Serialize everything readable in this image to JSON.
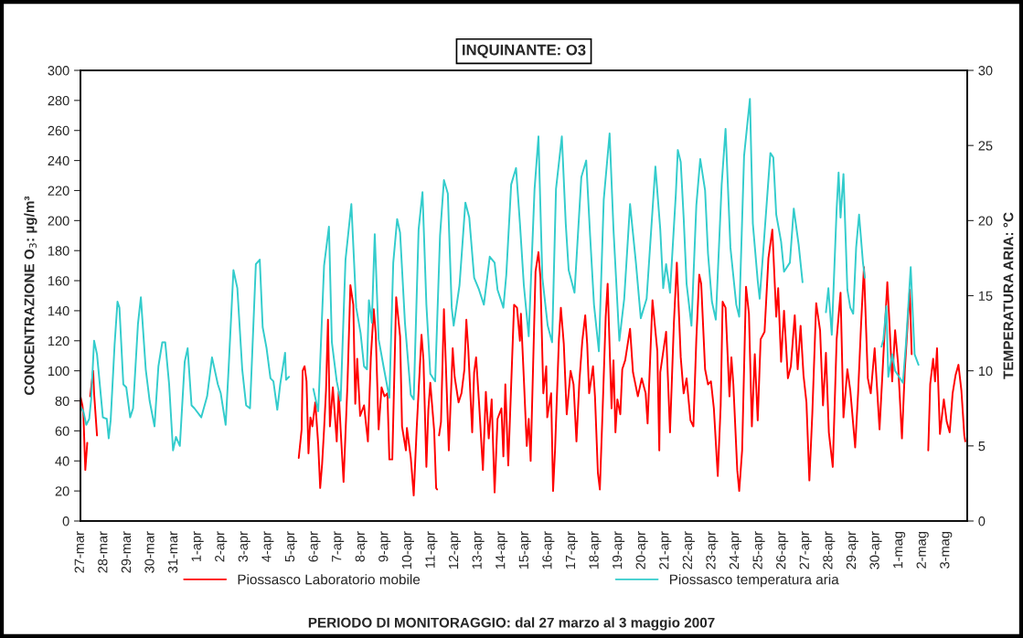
{
  "chart_data": {
    "type": "line",
    "title": "INQUINANTE: O3",
    "xlabel": "PERIODO DI MONITORAGGIO: dal 27 marzo al 3 maggio 2007",
    "ylabel": "CONCENTRAZIONE O$_{3}$: µg/m³",
    "y2label": "TEMPERATURA ARIA: °C",
    "xlim": [
      "2007-03-27",
      "2007-05-03T22:00"
    ],
    "xticks": [
      {
        "value": "2007-03-27",
        "label": "27-mar"
      },
      {
        "value": "2007-03-28",
        "label": "28-mar"
      },
      {
        "value": "2007-03-29",
        "label": "29-mar"
      },
      {
        "value": "2007-03-30",
        "label": "30-mar"
      },
      {
        "value": "2007-03-31",
        "label": "31-mar"
      },
      {
        "value": "2007-04-01",
        "label": "1-apr"
      },
      {
        "value": "2007-04-02",
        "label": "2-apr"
      },
      {
        "value": "2007-04-03",
        "label": "3-apr"
      },
      {
        "value": "2007-04-04",
        "label": "4-apr"
      },
      {
        "value": "2007-04-05",
        "label": "5-apr"
      },
      {
        "value": "2007-04-06",
        "label": "6-apr"
      },
      {
        "value": "2007-04-07",
        "label": "7-apr"
      },
      {
        "value": "2007-04-08",
        "label": "8-apr"
      },
      {
        "value": "2007-04-09",
        "label": "9-apr"
      },
      {
        "value": "2007-04-10",
        "label": "10-apr"
      },
      {
        "value": "2007-04-11",
        "label": "11-apr"
      },
      {
        "value": "2007-04-12",
        "label": "12-apr"
      },
      {
        "value": "2007-04-13",
        "label": "13-apr"
      },
      {
        "value": "2007-04-14",
        "label": "14-apr"
      },
      {
        "value": "2007-04-15",
        "label": "15-apr"
      },
      {
        "value": "2007-04-16",
        "label": "16-apr"
      },
      {
        "value": "2007-04-17",
        "label": "17-apr"
      },
      {
        "value": "2007-04-18",
        "label": "18-apr"
      },
      {
        "value": "2007-04-19",
        "label": "19-apr"
      },
      {
        "value": "2007-04-20",
        "label": "20-apr"
      },
      {
        "value": "2007-04-21",
        "label": "21-apr"
      },
      {
        "value": "2007-04-22",
        "label": "22-apr"
      },
      {
        "value": "2007-04-23",
        "label": "23-apr"
      },
      {
        "value": "2007-04-24",
        "label": "24-apr"
      },
      {
        "value": "2007-04-25",
        "label": "25-apr"
      },
      {
        "value": "2007-04-26",
        "label": "26-apr"
      },
      {
        "value": "2007-04-27",
        "label": "27-apr"
      },
      {
        "value": "2007-04-28",
        "label": "28-apr"
      },
      {
        "value": "2007-04-29",
        "label": "29-apr"
      },
      {
        "value": "2007-04-30",
        "label": "30-apr"
      },
      {
        "value": "2007-05-01",
        "label": "1-mag"
      },
      {
        "value": "2007-05-02",
        "label": "2-mag"
      },
      {
        "value": "2007-05-03",
        "label": "3-mag"
      }
    ],
    "ylim": [
      0,
      300
    ],
    "yticks": [
      0,
      20,
      40,
      60,
      80,
      100,
      120,
      140,
      160,
      180,
      200,
      220,
      240,
      260,
      280,
      300
    ],
    "y2lim": [
      0,
      30
    ],
    "y2ticks": [
      0,
      5,
      10,
      15,
      20,
      25,
      30
    ],
    "grid": false,
    "legend": "bottom",
    "marker": "none",
    "line_style": "solid",
    "series": [
      {
        "name": "Piossasco Laboratorio mobile",
        "color": "#ff0000",
        "axis": "y",
        "x": [
          "2007-03-27T00:00",
          "2007-03-27T02:00",
          "2007-03-27T03:00",
          "2007-03-27T05:00",
          "2007-03-27T07:00",
          "2007-03-27T09:00",
          "2007-03-27T10:00",
          "2007-03-27T13:00",
          "2007-03-27T14:00",
          "2007-03-27T17:00",
          "2007-04-01T00:00",
          "2007-04-05T08:00",
          "2007-04-05T11:00",
          "2007-04-05T12:00",
          "2007-04-05T14:00",
          "2007-04-05T16:00",
          "2007-04-05T18:00",
          "2007-04-05T20:00",
          "2007-04-05T22:00",
          "2007-04-06T01:00",
          "2007-04-06T04:00",
          "2007-04-06T06:00",
          "2007-04-06T08:00",
          "2007-04-06T10:00",
          "2007-04-06T12:00",
          "2007-04-06T14:00",
          "2007-04-06T16:00",
          "2007-04-06T19:00",
          "2007-04-06T23:00",
          "2007-04-07T01:00",
          "2007-04-07T03:00",
          "2007-04-07T06:00",
          "2007-04-07T10:00",
          "2007-04-07T13:00",
          "2007-04-07T16:00",
          "2007-04-07T18:00",
          "2007-04-07T20:00",
          "2007-04-07T23:00",
          "2007-04-08T03:00",
          "2007-04-08T07:00",
          "2007-04-08T10:00",
          "2007-04-08T13:00",
          "2007-04-08T15:00",
          "2007-04-08T18:00",
          "2007-04-08T21:00",
          "2007-04-09T00:00",
          "2007-04-09T03:00",
          "2007-04-09T05:00",
          "2007-04-09T08:00",
          "2007-04-09T12:00",
          "2007-04-09T16:00",
          "2007-04-09T18:00",
          "2007-04-09T22:00",
          "2007-04-09T23:00",
          "2007-04-10T03:00",
          "2007-04-10T06:00",
          "2007-04-10T09:00",
          "2007-04-10T14:00",
          "2007-04-10T16:00",
          "2007-04-10T19:00",
          "2007-04-10T21:00",
          "2007-04-10T23:00",
          "2007-04-11T03:00",
          "2007-04-11T05:00",
          "2007-04-11T06:00",
          "2007-04-11T07:00",
          "2007-04-11T08:00",
          "2007-04-11T10:00",
          "2007-04-11T13:00",
          "2007-04-11T18:00",
          "2007-04-11T22:00",
          "2007-04-12T00:00",
          "2007-04-12T04:00",
          "2007-04-12T07:00",
          "2007-04-12T10:00",
          "2007-04-12T12:00",
          "2007-04-12T14:00",
          "2007-04-12T18:00",
          "2007-04-12T20:00",
          "2007-04-12T22:00",
          "2007-04-13T01:00",
          "2007-04-13T05:00",
          "2007-04-13T08:00",
          "2007-04-13T11:00",
          "2007-04-13T14:00",
          "2007-04-13T17:00",
          "2007-04-13T20:00",
          "2007-04-14T00:00",
          "2007-04-14T02:00",
          "2007-04-14T04:00",
          "2007-04-14T07:00",
          "2007-04-14T13:00",
          "2007-04-14T16:00",
          "2007-04-14T19:00",
          "2007-04-14T20:00",
          "2007-04-14T23:00",
          "2007-04-15T02:00",
          "2007-04-15T04:00",
          "2007-04-15T06:00",
          "2007-04-15T11:00",
          "2007-04-15T14:00",
          "2007-04-15T16:00",
          "2007-04-15T19:00",
          "2007-04-15T22:00",
          "2007-04-15T23:00",
          "2007-04-16T03:00",
          "2007-04-16T05:00",
          "2007-04-16T07:00",
          "2007-04-16T11:00",
          "2007-04-16T13:00",
          "2007-04-16T16:00",
          "2007-04-16T19:00",
          "2007-04-16T23:00",
          "2007-04-17T02:00",
          "2007-04-17T05:00",
          "2007-04-17T08:00",
          "2007-04-17T11:00",
          "2007-04-17T14:00",
          "2007-04-17T16:00",
          "2007-04-17T18:00",
          "2007-04-17T22:00",
          "2007-04-18T00:00",
          "2007-04-18T03:00",
          "2007-04-18T05:00",
          "2007-04-18T08:00",
          "2007-04-18T11:00",
          "2007-04-18T13:00",
          "2007-04-18T17:00",
          "2007-04-18T19:00",
          "2007-04-18T21:00",
          "2007-04-18T23:00",
          "2007-04-19T02:00",
          "2007-04-19T04:00",
          "2007-04-19T07:00",
          "2007-04-19T12:00",
          "2007-04-19T15:00",
          "2007-04-19T20:00",
          "2007-04-20T00:00",
          "2007-04-20T04:00",
          "2007-04-20T06:00",
          "2007-04-20T11:00",
          "2007-04-20T16:00",
          "2007-04-20T18:00",
          "2007-04-20T19:00",
          "2007-04-21T01:00",
          "2007-04-21T05:00",
          "2007-04-21T09:00",
          "2007-04-21T12:00",
          "2007-04-21T16:00",
          "2007-04-21T19:00",
          "2007-04-21T22:00",
          "2007-04-22T02:00",
          "2007-04-22T05:00",
          "2007-04-22T08:00",
          "2007-04-22T11:00",
          "2007-04-22T13:00",
          "2007-04-22T17:00",
          "2007-04-22T20:00",
          "2007-04-22T23:00",
          "2007-04-23T02:00",
          "2007-04-23T06:00",
          "2007-04-23T09:00",
          "2007-04-23T11:00",
          "2007-04-23T14:00",
          "2007-04-23T18:00",
          "2007-04-23T20:00",
          "2007-04-23T22:00",
          "2007-04-24T02:00",
          "2007-04-24T04:00",
          "2007-04-24T07:00",
          "2007-04-24T11:00",
          "2007-04-24T14:00",
          "2007-04-24T17:00",
          "2007-04-24T20:00",
          "2007-04-24T23:00",
          "2007-04-25T02:00",
          "2007-04-25T06:00",
          "2007-04-25T10:00",
          "2007-04-25T14:00",
          "2007-04-25T18:00",
          "2007-04-25T20:00",
          "2007-04-25T23:00",
          "2007-04-26T02:00",
          "2007-04-26T06:00",
          "2007-04-26T09:00",
          "2007-04-26T13:00",
          "2007-04-26T16:00",
          "2007-04-26T19:00",
          "2007-04-26T22:00",
          "2007-04-27T01:00",
          "2007-04-27T04:00",
          "2007-04-27T07:00",
          "2007-04-27T11:00",
          "2007-04-27T15:00",
          "2007-04-27T18:00",
          "2007-04-27T21:00",
          "2007-04-28T00:00",
          "2007-04-28T04:00",
          "2007-04-28T08:00",
          "2007-04-28T12:00",
          "2007-04-28T15:00",
          "2007-04-28T19:00",
          "2007-04-28T22:00",
          "2007-04-29T03:00",
          "2007-04-29T06:00",
          "2007-04-29T09:00",
          "2007-04-29T12:00",
          "2007-04-29T16:00",
          "2007-04-29T19:00",
          "2007-04-29T23:00",
          "2007-04-30T04:00",
          "2007-04-30T09:00",
          "2007-04-30T12:00",
          "2007-04-30T14:00",
          "2007-04-30T17:00",
          "2007-04-30T20:00",
          "2007-04-30T23:00",
          "2007-05-01T03:00",
          "2007-05-01T06:00",
          "2007-05-01T11:00",
          "2007-05-01T13:00",
          "2007-05-01T22:00",
          "2007-05-02T06:00",
          "2007-05-02T08:00",
          "2007-05-02T11:00",
          "2007-05-02T13:00",
          "2007-05-02T15:00",
          "2007-05-02T18:00",
          "2007-05-02T22:00",
          "2007-05-03T01:00",
          "2007-05-03T04:00",
          "2007-05-03T07:00",
          "2007-05-03T10:00",
          "2007-05-03T13:00",
          "2007-05-03T16:00",
          "2007-05-03T19:00",
          "2007-05-03T20:00"
        ],
        "values": [
          83,
          77,
          71,
          34,
          52,
          null,
          83,
          100,
          85,
          57,
          null,
          42,
          61,
          100,
          103,
          93,
          45,
          69,
          63,
          79,
          51,
          22,
          38,
          61,
          87,
          134,
          63,
          89,
          53,
          86,
          61,
          26,
          91,
          157,
          144,
          78,
          108,
          70,
          77,
          53,
          109,
          141,
          125,
          61,
          89,
          83,
          85,
          41,
          41,
          149,
          123,
          63,
          47,
          62,
          42,
          17,
          61,
          124,
          107,
          36,
          74,
          92,
          60,
          22,
          21,
          null,
          57,
          66,
          141,
          47,
          115,
          96,
          79,
          85,
          101,
          134,
          114,
          59,
          99,
          109,
          79,
          34,
          86,
          55,
          81,
          19,
          68,
          75,
          43,
          91,
          37,
          144,
          142,
          120,
          138,
          95,
          50,
          68,
          40,
          166,
          179,
          162,
          85,
          103,
          69,
          85,
          20,
          47,
          121,
          142,
          118,
          71,
          100,
          91,
          53,
          93,
          120,
          137,
          118,
          85,
          103,
          83,
          32,
          21,
          77,
          136,
          158,
          75,
          107,
          59,
          81,
          71,
          101,
          107,
          128,
          99,
          83,
          95,
          85,
          65,
          147,
          113,
          47,
          99,
          126,
          59,
          132,
          172,
          109,
          85,
          95,
          67,
          63,
          121,
          164,
          158,
          101,
          91,
          93,
          75,
          30,
          77,
          146,
          142,
          83,
          109,
          91,
          34,
          20,
          47,
          156,
          138,
          63,
          111,
          67,
          121,
          126,
          175,
          194,
          136,
          155,
          106,
          140,
          95,
          103,
          137,
          101,
          130,
          97,
          79,
          27,
          71,
          145,
          127,
          77,
          112,
          59,
          36,
          121,
          152,
          69,
          101,
          87,
          49,
          85,
          130,
          169,
          95,
          85,
          115,
          61,
          123,
          159,
          134,
          93,
          127,
          105,
          55,
          101,
          154,
          111,
          null,
          47,
          91,
          108,
          93,
          115,
          58,
          81,
          66,
          59,
          85,
          97,
          104,
          87,
          57,
          53
        ]
      },
      {
        "name": "Piossasco temperatura aria",
        "color": "#33cccc",
        "axis": "y2",
        "x": [
          "2007-03-27T00:00",
          "2007-03-27T03:00",
          "2007-03-27T06:00",
          "2007-03-27T09:00",
          "2007-03-27T11:00",
          "2007-03-27T14:00",
          "2007-03-27T17:00",
          "2007-03-27T21:00",
          "2007-03-27T23:00",
          "2007-03-28T03:00",
          "2007-03-28T05:00",
          "2007-03-28T07:00",
          "2007-03-28T11:00",
          "2007-03-28T14:00",
          "2007-03-28T16:00",
          "2007-03-28T20:00",
          "2007-03-28T23:00",
          "2007-03-29T03:00",
          "2007-03-29T06:00",
          "2007-03-29T11:00",
          "2007-03-29T14:00",
          "2007-03-29T19:00",
          "2007-03-29T23:00",
          "2007-03-30T04:00",
          "2007-03-30T08:00",
          "2007-03-30T12:00",
          "2007-03-30T15:00",
          "2007-03-30T19:00",
          "2007-03-30T23:00",
          "2007-03-31T02:00",
          "2007-03-31T06:00",
          "2007-03-31T11:00",
          "2007-03-31T14:00",
          "2007-03-31T18:00",
          "2007-03-31T21:00",
          "2007-04-01T04:00",
          "2007-04-01T10:00",
          "2007-04-01T15:00",
          "2007-04-01T21:00",
          "2007-04-02T00:00",
          "2007-04-02T05:00",
          "2007-04-02T08:00",
          "2007-04-02T13:00",
          "2007-04-02T17:00",
          "2007-04-02T22:00",
          "2007-04-03T02:00",
          "2007-04-03T06:00",
          "2007-04-03T12:00",
          "2007-04-03T16:00",
          "2007-04-03T19:00",
          "2007-04-03T23:00",
          "2007-04-04T03:00",
          "2007-04-04T06:00",
          "2007-04-04T10:00",
          "2007-04-04T13:00",
          "2007-04-04T18:00",
          "2007-04-04T19:00",
          "2007-04-04T22:00",
          "2007-04-05T12:00",
          "2007-04-05T23:00",
          "2007-04-06T04:00",
          "2007-04-06T10:00",
          "2007-04-06T15:00",
          "2007-04-06T18:00",
          "2007-04-06T23:00",
          "2007-04-07T03:00",
          "2007-04-07T08:00",
          "2007-04-07T14:00",
          "2007-04-07T19:00",
          "2007-04-07T23:30",
          "2007-04-08T03:00",
          "2007-04-08T06:00",
          "2007-04-08T08:00",
          "2007-04-08T11:00",
          "2007-04-08T14:00",
          "2007-04-08T18:00",
          "2007-04-08T23:00",
          "2007-04-09T05:00",
          "2007-04-09T09:00",
          "2007-04-09T13:00",
          "2007-04-09T16:00",
          "2007-04-09T21:00",
          "2007-04-10T03:00",
          "2007-04-10T06:00",
          "2007-04-10T11:00",
          "2007-04-10T15:00",
          "2007-04-10T19:00",
          "2007-04-10T23:00",
          "2007-04-11T04:00",
          "2007-04-11T09:00",
          "2007-04-11T13:00",
          "2007-04-11T17:00",
          "2007-04-11T21:00",
          "2007-04-11T23:00",
          "2007-04-12T05:00",
          "2007-04-12T11:00",
          "2007-04-12T15:00",
          "2007-04-12T20:00",
          "2007-04-13T01:00",
          "2007-04-13T06:00",
          "2007-04-13T12:00",
          "2007-04-13T17:00",
          "2007-04-13T20:00",
          "2007-04-14T02:00",
          "2007-04-14T05:00",
          "2007-04-14T10:00",
          "2007-04-14T15:00",
          "2007-04-14T19:00",
          "2007-04-14T23:00",
          "2007-04-15T04:00",
          "2007-04-15T10:00",
          "2007-04-15T14:00",
          "2007-04-15T18:00",
          "2007-04-15T23:30",
          "2007-04-16T04:00",
          "2007-04-16T08:00",
          "2007-04-16T14:00",
          "2007-04-16T18:00",
          "2007-04-16T21:00",
          "2007-04-17T03:00",
          "2007-04-17T10:00",
          "2007-04-17T15:00",
          "2007-04-17T19:00",
          "2007-04-17T23:00",
          "2007-04-18T04:00",
          "2007-04-18T09:00",
          "2007-04-18T15:00",
          "2007-04-18T19:00",
          "2007-04-19T01:00",
          "2007-04-19T06:00",
          "2007-04-19T12:00",
          "2007-04-19T18:00",
          "2007-04-19T23:00",
          "2007-04-20T05:00",
          "2007-04-20T14:00",
          "2007-04-20T19:00",
          "2007-04-20T22:00",
          "2007-04-21T01:00",
          "2007-04-21T05:00",
          "2007-04-21T11:00",
          "2007-04-21T13:00",
          "2007-04-21T16:00",
          "2007-04-21T19:00",
          "2007-04-21T22:00",
          "2007-04-22T03:00",
          "2007-04-22T08:00",
          "2007-04-22T12:00",
          "2007-04-22T17:00",
          "2007-04-22T20:00",
          "2007-04-23T00:00",
          "2007-04-23T04:00",
          "2007-04-23T10:00",
          "2007-04-23T14:00",
          "2007-04-23T19:00",
          "2007-04-24T01:00",
          "2007-04-24T04:00",
          "2007-04-24T09:00",
          "2007-04-24T15:00",
          "2007-04-24T18:00",
          "2007-04-24T23:00",
          "2007-04-25T01:00",
          "2007-04-25T04:00",
          "2007-04-25T12:00",
          "2007-04-25T15:00",
          "2007-04-25T18:00",
          "2007-04-25T23:00",
          "2007-04-26T02:00",
          "2007-04-26T08:00",
          "2007-04-26T12:00",
          "2007-04-26T17:00",
          "2007-04-26T21:00",
          "2007-04-27T10:00",
          "2007-04-27T21:00",
          "2007-04-27T23:30",
          "2007-04-28T03:00",
          "2007-04-28T08:00",
          "2007-04-28T10:00",
          "2007-04-28T12:00",
          "2007-04-28T15:00",
          "2007-04-28T19:00",
          "2007-04-28T22:00",
          "2007-04-29T01:00",
          "2007-04-29T04:00",
          "2007-04-29T07:00",
          "2007-04-29T11:00",
          "2007-04-29T13:00",
          "2007-04-29T22:00",
          "2007-04-30T06:00",
          "2007-04-30T08:00",
          "2007-04-30T11:00",
          "2007-04-30T13:00",
          "2007-04-30T17:00",
          "2007-04-30T20:00",
          "2007-05-01T04:00",
          "2007-05-01T07:00",
          "2007-05-01T12:00",
          "2007-05-01T16:00",
          "2007-05-01T20:00"
        ],
        "values": [
          7.6,
          7.3,
          6.4,
          6.8,
          8.1,
          12.0,
          11.1,
          8.3,
          6.9,
          6.8,
          5.5,
          6.7,
          11.7,
          14.6,
          14.2,
          9.1,
          8.9,
          6.9,
          7.5,
          13.1,
          14.9,
          10.1,
          8.0,
          6.3,
          10.3,
          11.9,
          11.9,
          9.1,
          4.7,
          5.6,
          5.0,
          10.6,
          11.5,
          7.7,
          7.5,
          6.9,
          8.3,
          10.9,
          9.1,
          8.5,
          6.4,
          10.1,
          16.7,
          15.5,
          10.1,
          7.7,
          7.5,
          17.1,
          17.4,
          12.9,
          11.5,
          9.5,
          9.3,
          7.4,
          9.1,
          11.2,
          9.4,
          9.6,
          null,
          8.8,
          7.3,
          17.0,
          19.6,
          11.9,
          9.3,
          8.0,
          17.4,
          21.1,
          14.2,
          12.5,
          10.3,
          10.1,
          14.7,
          13.2,
          19.1,
          12.1,
          10.3,
          8.2,
          17.2,
          20.1,
          19.2,
          13.2,
          8.4,
          8.1,
          19.4,
          21.9,
          14.4,
          9.8,
          9.3,
          19.0,
          22.7,
          21.8,
          14.2,
          13.0,
          15.7,
          21.2,
          20.2,
          16.2,
          15.4,
          14.4,
          17.6,
          17.2,
          15.4,
          14.2,
          16.4,
          22.4,
          23.5,
          19.8,
          15.7,
          12.3,
          22.1,
          25.6,
          16.2,
          13.0,
          11.9,
          22.1,
          25.6,
          19.8,
          16.7,
          15.2,
          22.9,
          24.0,
          19.0,
          14.4,
          11.3,
          21.4,
          25.8,
          19.4,
          12.0,
          14.8,
          21.1,
          17.2,
          13.5,
          14.8,
          23.6,
          19.4,
          15.5,
          17.1,
          15.2,
          21.8,
          24.7,
          23.9,
          20.2,
          15.8,
          13.0,
          21.0,
          24.1,
          22.0,
          17.8,
          14.6,
          13.4,
          22.4,
          26.1,
          18.2,
          14.4,
          13.6,
          24.3,
          28.1,
          19.8,
          16.0,
          14.8,
          17.4,
          24.5,
          24.2,
          20.4,
          18.6,
          16.6,
          17.2,
          20.8,
          18.4,
          15.9,
          null,
          13.9,
          15.5,
          12.4,
          20.8,
          23.2,
          20.2,
          23.1,
          15.4,
          14.2,
          13.8,
          18.2,
          20.4,
          17.2,
          16.2,
          null,
          11.6,
          12.1,
          14.3,
          9.6,
          11.1,
          10.0,
          9.2,
          11.7,
          16.9,
          11.1,
          10.4
        ]
      }
    ]
  }
}
